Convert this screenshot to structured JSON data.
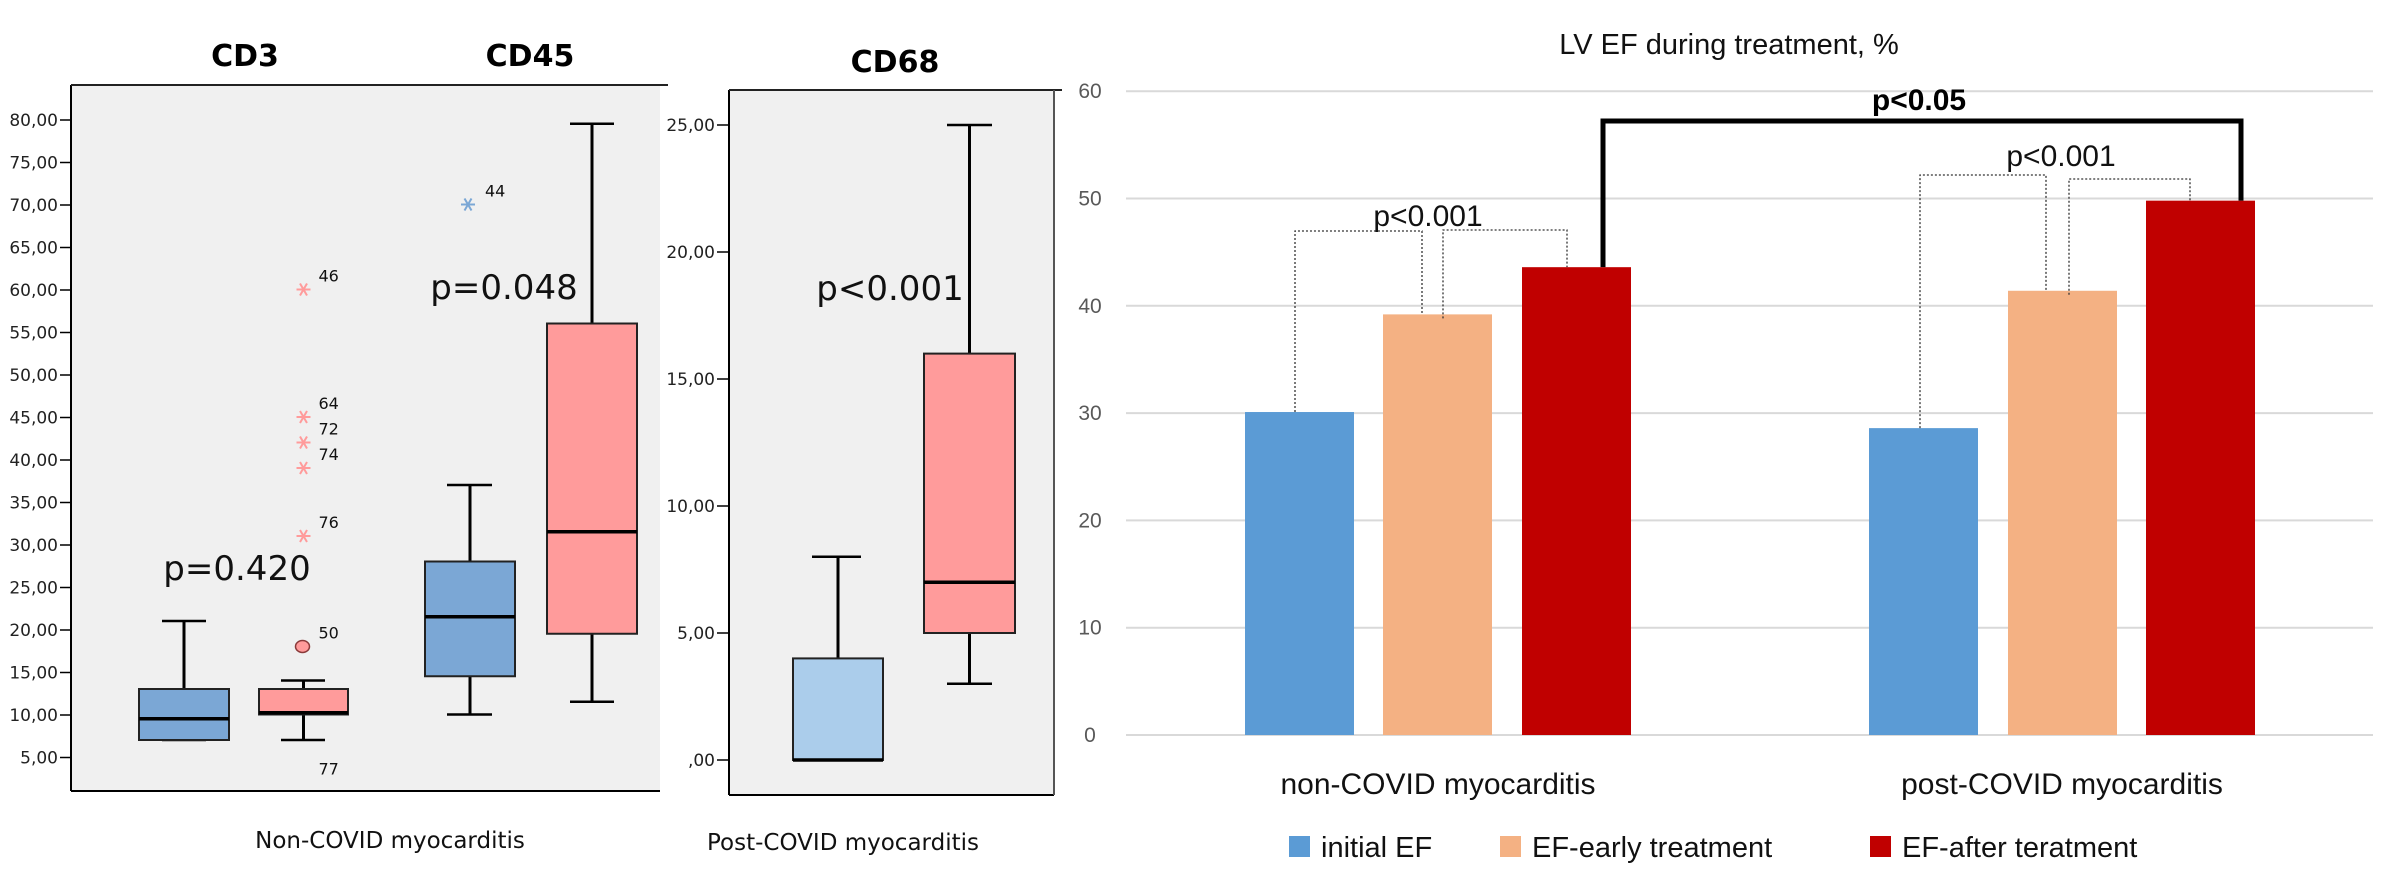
{
  "chart_data": [
    {
      "type": "box",
      "xlabel": "Non-COVID myocarditis",
      "ylim": [
        5,
        80
      ],
      "yticks": [
        "80,00",
        "75,00",
        "70,00",
        "65,00",
        "60,00",
        "55,00",
        "50,00",
        "45,00",
        "40,00",
        "35,00",
        "30,00",
        "25,00",
        "20,00",
        "15,00",
        "10,00",
        "5,00"
      ],
      "background": "#f0f0f0",
      "panels": [
        {
          "title": "CD3",
          "p_value": "p=0.420",
          "boxes": [
            {
              "color": "#7ba7d5",
              "min": 7,
              "q1": 7,
              "median": 9.5,
              "q3": 13,
              "max": 21,
              "outliers": []
            },
            {
              "color": "#ff9b9b",
              "min": 7,
              "q1": 10,
              "median": 10.2,
              "q3": 13,
              "max": 14,
              "outliers": [
                {
                  "value": 18,
                  "label": "50",
                  "marker": "circle"
                },
                {
                  "value": 60,
                  "label": "46",
                  "marker": "star"
                },
                {
                  "value": 45,
                  "label": "64",
                  "marker": "star"
                },
                {
                  "value": 42,
                  "label": "72",
                  "marker": "star"
                },
                {
                  "value": 39,
                  "label": "74",
                  "marker": "star"
                },
                {
                  "value": 31,
                  "label": "76",
                  "marker": "star"
                },
                {
                  "value": 2,
                  "label": "77",
                  "marker": "star"
                }
              ]
            }
          ]
        },
        {
          "title": "CD45",
          "p_value": "p=0.048",
          "boxes": [
            {
              "color": "#7ba7d5",
              "min": 10,
              "q1": 14.5,
              "median": 21.5,
              "q3": 28,
              "max": 37,
              "outliers": [
                {
                  "value": 70,
                  "label": "44",
                  "marker": "star"
                }
              ]
            },
            {
              "color": "#ff9b9b",
              "min": 11.5,
              "q1": 19.5,
              "median": 31.5,
              "q3": 56,
              "max": 79.5,
              "outliers": []
            }
          ]
        }
      ]
    },
    {
      "type": "box",
      "xlabel": "Post-COVID myocarditis",
      "ylim": [
        0,
        25
      ],
      "yticks": [
        "25,00",
        "20,00",
        "15,00",
        "10,00",
        "5,00",
        ",00"
      ],
      "background": "#f0f0f0",
      "panels": [
        {
          "title": "CD68",
          "p_value": "p<0.001",
          "boxes": [
            {
              "color": "#abcdeb",
              "min": 0,
              "q1": 0,
              "median": 0,
              "q3": 4,
              "max": 8,
              "outliers": []
            },
            {
              "color": "#ff9b9b",
              "min": 3,
              "q1": 5,
              "median": 7,
              "q3": 16,
              "max": 25,
              "outliers": []
            }
          ]
        }
      ]
    },
    {
      "type": "bar",
      "title": "LV EF during treatment, %",
      "categories": [
        "non-COVID myocarditis",
        "post-COVID myocarditis"
      ],
      "ylim": [
        0,
        60
      ],
      "yticks": [
        "60",
        "50",
        "40",
        "30",
        "20",
        "10",
        "0"
      ],
      "grid": true,
      "legend_position": "bottom",
      "series": [
        {
          "name": "initial EF",
          "color": "#5b9bd5",
          "values": [
            30.1,
            28.6
          ]
        },
        {
          "name": "EF-early treatment",
          "color": "#f4b183",
          "values": [
            39.2,
            41.4
          ]
        },
        {
          "name": "EF-after teratment",
          "color": "#c00000",
          "values": [
            43.6,
            49.8
          ]
        }
      ],
      "annotations": {
        "within_group": [
          "p<0.001",
          "p<0.001"
        ],
        "between_groups": "p<0.05"
      }
    }
  ]
}
